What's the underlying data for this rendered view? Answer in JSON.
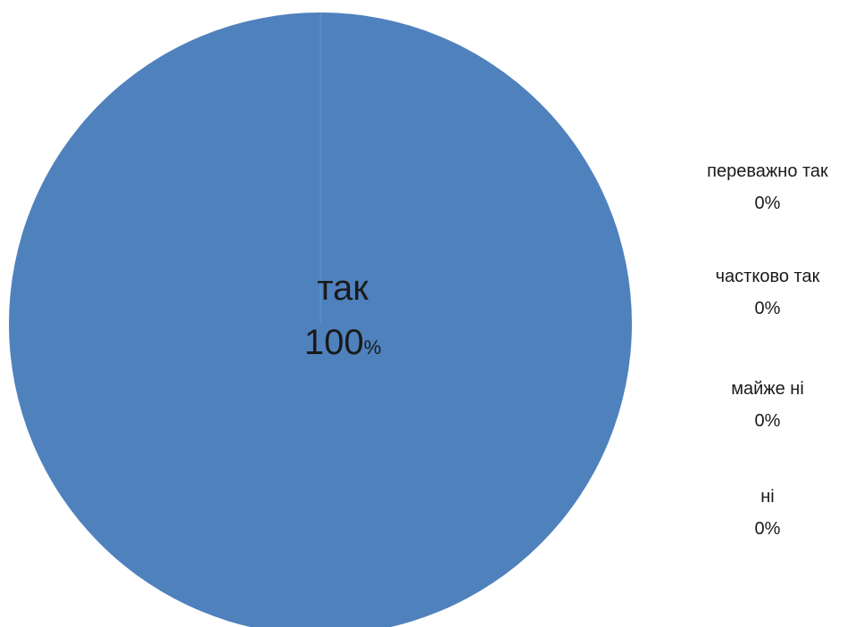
{
  "chart_data": {
    "type": "pie",
    "categories": [
      "так",
      "переважно так",
      "частково так",
      "майже ні",
      "ні"
    ],
    "values": [
      100,
      0,
      0,
      0,
      0
    ],
    "value_labels": [
      "100%",
      "0%",
      "0%",
      "0%",
      "0%"
    ],
    "colors": {
      "так": "#4f81bd",
      "separator": "#5b9bd5"
    }
  }
}
